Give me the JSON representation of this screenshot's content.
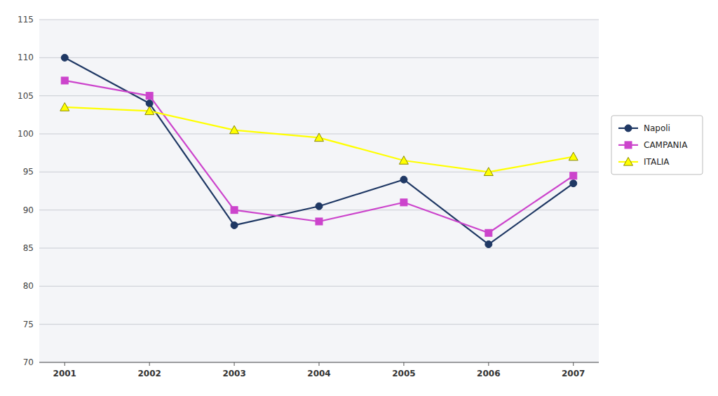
{
  "chart_data": {
    "type": "line",
    "x": [
      2001,
      2002,
      2003,
      2004,
      2005,
      2006,
      2007
    ],
    "series": [
      {
        "name": "Napoli",
        "color": "#1F3864",
        "marker": "circle",
        "values": [
          110,
          104,
          88,
          90.5,
          94,
          85.5,
          93.5
        ]
      },
      {
        "name": "CAMPANIA",
        "color": "#CC44CC",
        "marker": "square",
        "values": [
          107,
          105,
          90,
          88.5,
          91,
          87,
          94.5
        ]
      },
      {
        "name": "ITALIA",
        "color": "#FFFF00",
        "marker": "triangle",
        "values": [
          103.5,
          103,
          100.5,
          99.5,
          96.5,
          95,
          97
        ]
      }
    ],
    "xlim": [
      2000.7,
      2007.3
    ],
    "xticks": [
      2001,
      2002,
      2003,
      2004,
      2005,
      2006,
      2007
    ],
    "ylim": [
      70,
      115
    ],
    "yticks": [
      70,
      75,
      80,
      85,
      90,
      95,
      100,
      105,
      110,
      115
    ],
    "grid": true,
    "legend": "right"
  }
}
